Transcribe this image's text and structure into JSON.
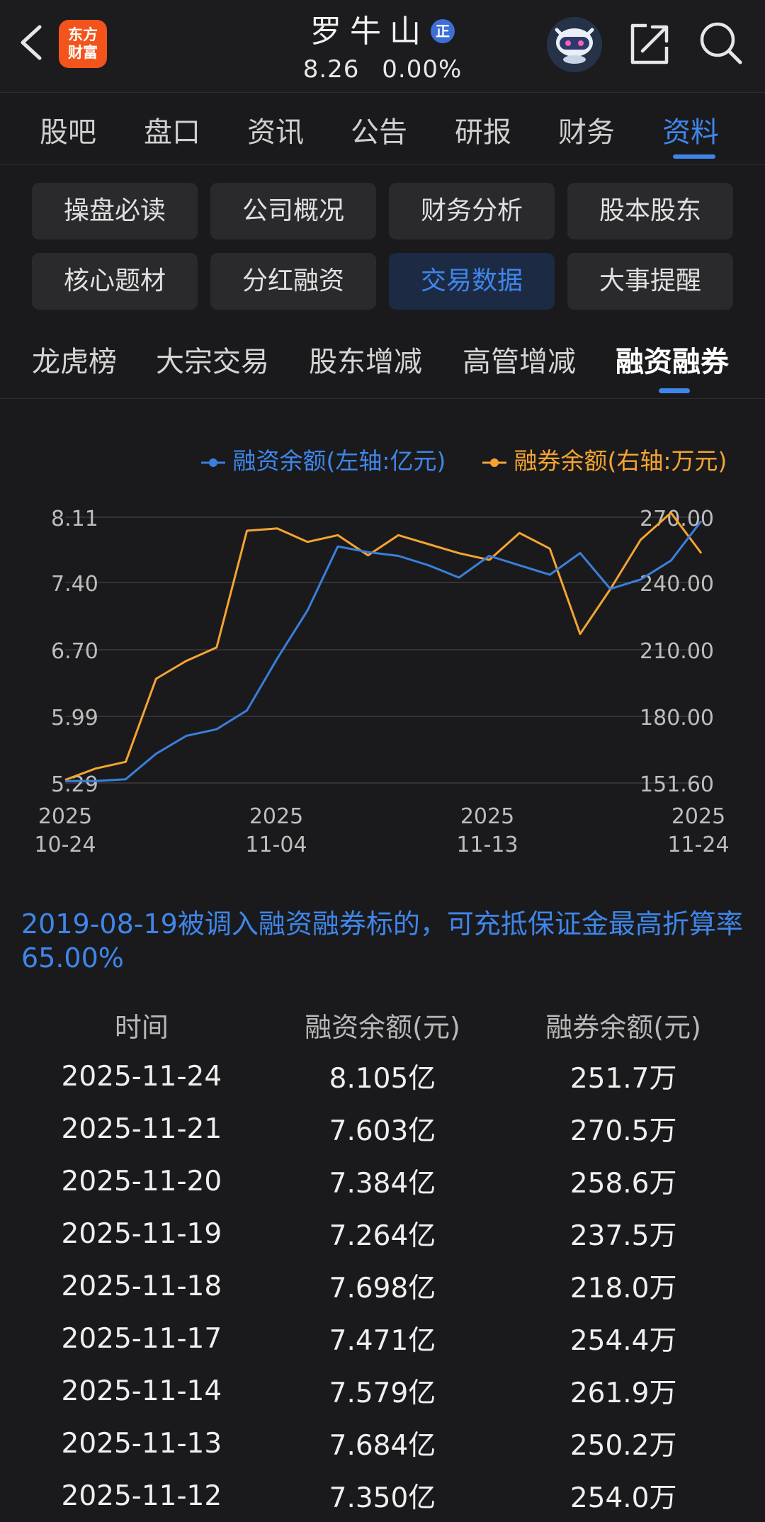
{
  "header": {
    "logo_line1": "东方",
    "logo_line2": "财富",
    "stock_name": "罗牛山",
    "badge": "正",
    "price": "8.26",
    "change": "0.00%"
  },
  "tabs": [
    {
      "label": "股吧"
    },
    {
      "label": "盘口"
    },
    {
      "label": "资讯"
    },
    {
      "label": "公告"
    },
    {
      "label": "研报"
    },
    {
      "label": "财务"
    },
    {
      "label": "资料"
    }
  ],
  "grid_buttons": [
    {
      "label": "操盘必读"
    },
    {
      "label": "公司概况"
    },
    {
      "label": "财务分析"
    },
    {
      "label": "股本股东"
    },
    {
      "label": "核心题材"
    },
    {
      "label": "分红融资"
    },
    {
      "label": "交易数据"
    },
    {
      "label": "大事提醒"
    }
  ],
  "subtabs": [
    {
      "label": "龙虎榜"
    },
    {
      "label": "大宗交易"
    },
    {
      "label": "股东增减"
    },
    {
      "label": "高管增减"
    },
    {
      "label": "融资融券"
    }
  ],
  "colors": {
    "accent": "#3f86ea",
    "orange": "#f5a431",
    "background": "#1a1a1c"
  },
  "chart_data": {
    "type": "line",
    "legend": [
      "融资余额(左轴:亿元)",
      "融券余额(右轴:万元)"
    ],
    "left_axis_ticks": [
      "8.11",
      "7.40",
      "6.70",
      "5.99",
      "5.29"
    ],
    "right_axis_ticks": [
      "270.00",
      "240.00",
      "210.00",
      "180.00",
      "151.60"
    ],
    "left_ylim": [
      5.29,
      8.11
    ],
    "right_ylim": [
      151.6,
      270.0
    ],
    "x_ticks": [
      {
        "year": "2025",
        "date": "10-24"
      },
      {
        "year": "2025",
        "date": "11-04"
      },
      {
        "year": "2025",
        "date": "11-13"
      },
      {
        "year": "2025",
        "date": "11-24"
      }
    ],
    "series": [
      {
        "name": "融资余额(左轴:亿元)",
        "color": "#3a7fdc",
        "values": [
          5.31,
          5.31,
          5.33,
          5.6,
          5.79,
          5.86,
          6.06,
          6.61,
          7.12,
          7.8,
          7.74,
          7.7,
          7.6,
          7.47,
          7.7,
          7.6,
          7.5,
          7.73,
          7.35,
          7.45,
          7.65,
          8.07
        ]
      },
      {
        "name": "融券余额(右轴:万元)",
        "color": "#f5a431",
        "values": [
          153.0,
          158.0,
          161.0,
          198.0,
          206.0,
          212.0,
          264.0,
          265.0,
          259.0,
          262.0,
          253.0,
          262.0,
          258.0,
          254.0,
          251.0,
          263.0,
          256.0,
          218.0,
          238.0,
          260.0,
          272.0,
          254.0
        ]
      }
    ]
  },
  "note": "2019-08-19被调入融资融券标的，可充抵保证金最高折算率65.00%",
  "table": {
    "headers": [
      "时间",
      "融资余额(元)",
      "融券余额(元)"
    ],
    "rows": [
      [
        "2025-11-24",
        "8.105亿",
        "251.7万"
      ],
      [
        "2025-11-21",
        "7.603亿",
        "270.5万"
      ],
      [
        "2025-11-20",
        "7.384亿",
        "258.6万"
      ],
      [
        "2025-11-19",
        "7.264亿",
        "237.5万"
      ],
      [
        "2025-11-18",
        "7.698亿",
        "218.0万"
      ],
      [
        "2025-11-17",
        "7.471亿",
        "254.4万"
      ],
      [
        "2025-11-14",
        "7.579亿",
        "261.9万"
      ],
      [
        "2025-11-13",
        "7.684亿",
        "250.2万"
      ],
      [
        "2025-11-12",
        "7.350亿",
        "254.0万"
      ]
    ]
  }
}
